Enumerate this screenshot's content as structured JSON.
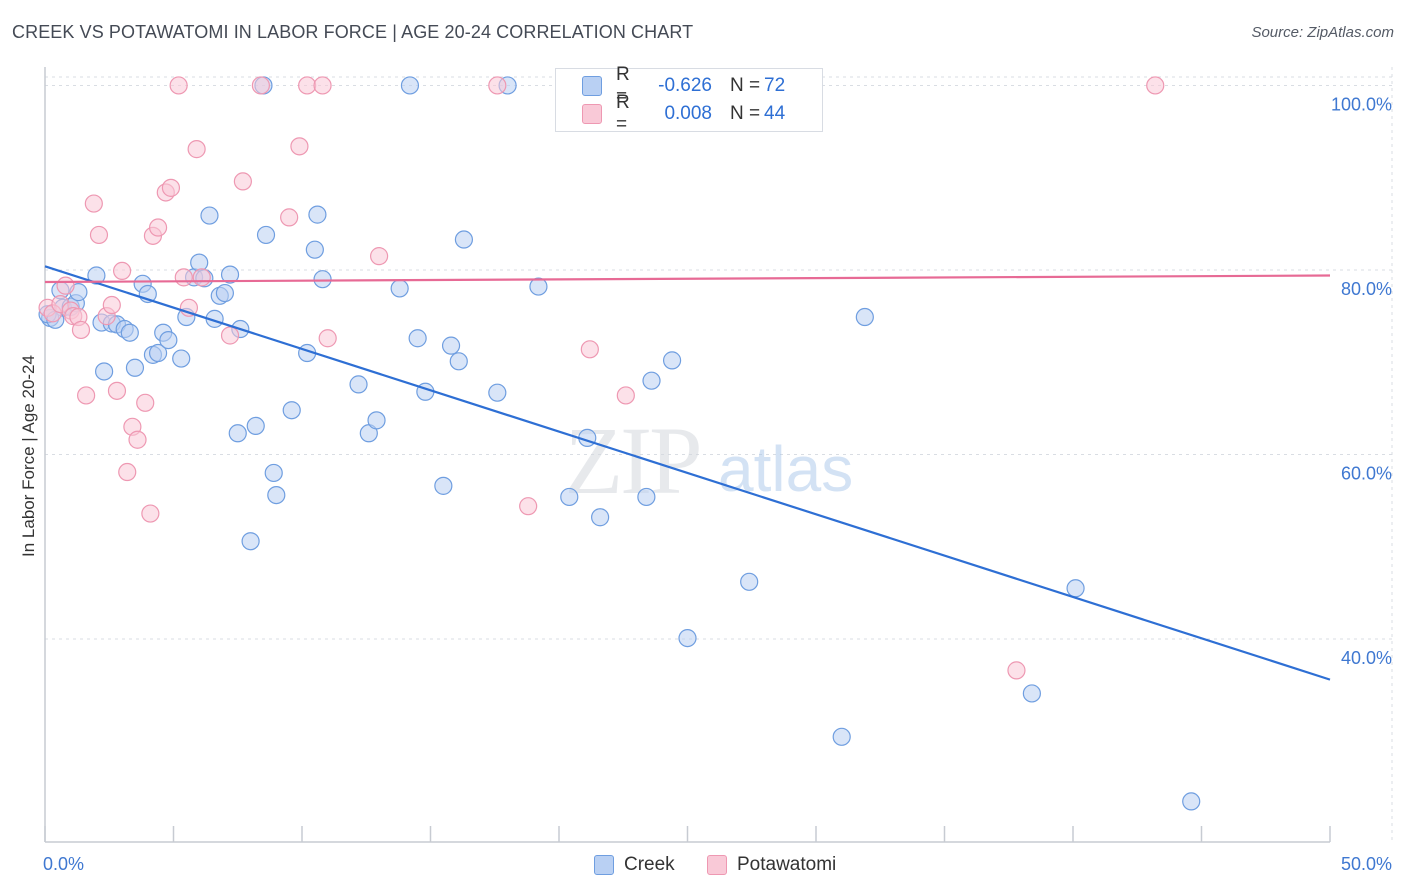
{
  "title": "CREEK VS POTAWATOMI IN LABOR FORCE | AGE 20-24 CORRELATION CHART",
  "source": "Source: ZipAtlas.com",
  "watermark": {
    "zip": "ZIP",
    "atlas": "atlas"
  },
  "legend": {
    "r_label": "R =",
    "n_label": "N =",
    "creek": {
      "r": "-0.626",
      "n": "72"
    },
    "potawatomi": {
      "r": "0.008",
      "n": "44"
    }
  },
  "colors": {
    "creek_fill": "#b9d0f3",
    "creek_stroke": "#6f9ee0",
    "creek_line": "#2e6fd4",
    "pot_fill": "#f9c9d7",
    "pot_stroke": "#ee98b2",
    "pot_line": "#e76a95",
    "axis_text": "#3f78d1",
    "grid": "#d9dde3"
  },
  "chart_data": {
    "type": "scatter",
    "title": "CREEK VS POTAWATOMI IN LABOR FORCE | AGE 20-24 CORRELATION CHART",
    "xlabel": "",
    "ylabel": "In Labor Force | Age 20-24",
    "xlim": [
      0,
      50
    ],
    "ylim": [
      18,
      102
    ],
    "x_tick_labels": [
      "0.0%",
      "50.0%"
    ],
    "y_ticks": [
      40,
      60,
      80,
      100
    ],
    "y_tick_labels": [
      "40.0%",
      "60.0%",
      "80.0%",
      "100.0%"
    ],
    "series": [
      {
        "name": "Creek",
        "r": -0.626,
        "n": 72,
        "trend": {
          "x": [
            0,
            50
          ],
          "y": [
            80.4,
            35.6
          ]
        },
        "points": [
          [
            0.2,
            74.8
          ],
          [
            0.6,
            77.8
          ],
          [
            0.7,
            75.9
          ],
          [
            1.0,
            76.0
          ],
          [
            1.2,
            76.4
          ],
          [
            1.3,
            77.6
          ],
          [
            2.0,
            79.4
          ],
          [
            2.2,
            74.3
          ],
          [
            2.3,
            69.0
          ],
          [
            2.6,
            74.2
          ],
          [
            2.8,
            74.1
          ],
          [
            3.1,
            73.6
          ],
          [
            3.3,
            73.2
          ],
          [
            3.5,
            69.4
          ],
          [
            3.8,
            78.5
          ],
          [
            4.0,
            77.4
          ],
          [
            4.2,
            70.8
          ],
          [
            4.4,
            71.0
          ],
          [
            4.6,
            73.2
          ],
          [
            4.8,
            72.4
          ],
          [
            5.3,
            70.4
          ],
          [
            5.5,
            74.9
          ],
          [
            5.8,
            79.2
          ],
          [
            6.0,
            80.8
          ],
          [
            6.2,
            79.1
          ],
          [
            6.4,
            85.9
          ],
          [
            6.6,
            74.7
          ],
          [
            6.8,
            77.2
          ],
          [
            7.0,
            77.5
          ],
          [
            7.2,
            79.5
          ],
          [
            7.5,
            62.3
          ],
          [
            7.6,
            73.6
          ],
          [
            8.0,
            50.6
          ],
          [
            8.2,
            63.1
          ],
          [
            8.5,
            100.0
          ],
          [
            8.6,
            83.8
          ],
          [
            8.9,
            58.0
          ],
          [
            9.0,
            55.6
          ],
          [
            9.6,
            64.8
          ],
          [
            10.2,
            71.0
          ],
          [
            10.5,
            82.2
          ],
          [
            10.6,
            86.0
          ],
          [
            10.8,
            79.0
          ],
          [
            12.2,
            67.6
          ],
          [
            12.6,
            62.3
          ],
          [
            12.9,
            63.7
          ],
          [
            13.8,
            78.0
          ],
          [
            14.2,
            100.0
          ],
          [
            14.5,
            72.6
          ],
          [
            14.8,
            66.8
          ],
          [
            15.5,
            56.6
          ],
          [
            15.8,
            71.8
          ],
          [
            16.1,
            70.1
          ],
          [
            16.3,
            83.3
          ],
          [
            17.6,
            66.7
          ],
          [
            18.0,
            100.0
          ],
          [
            19.2,
            78.2
          ],
          [
            20.4,
            55.4
          ],
          [
            21.1,
            61.8
          ],
          [
            21.6,
            53.2
          ],
          [
            23.4,
            55.4
          ],
          [
            23.6,
            68.0
          ],
          [
            24.4,
            70.2
          ],
          [
            25.0,
            40.1
          ],
          [
            27.4,
            46.2
          ],
          [
            31.0,
            29.4
          ],
          [
            31.9,
            74.9
          ],
          [
            38.4,
            34.1
          ],
          [
            40.1,
            45.5
          ],
          [
            44.6,
            22.4
          ],
          [
            0.1,
            75.2
          ],
          [
            0.4,
            74.6
          ]
        ]
      },
      {
        "name": "Potawatomi",
        "r": 0.008,
        "n": 44,
        "trend": {
          "x": [
            0,
            50
          ],
          "y": [
            78.7,
            79.4
          ]
        },
        "points": [
          [
            0.1,
            75.9
          ],
          [
            0.3,
            75.3
          ],
          [
            0.6,
            76.3
          ],
          [
            0.8,
            78.3
          ],
          [
            1.0,
            75.6
          ],
          [
            1.1,
            75.0
          ],
          [
            1.3,
            74.9
          ],
          [
            1.4,
            73.5
          ],
          [
            1.6,
            66.4
          ],
          [
            1.9,
            87.2
          ],
          [
            2.1,
            83.8
          ],
          [
            2.4,
            75.0
          ],
          [
            2.6,
            76.2
          ],
          [
            2.8,
            66.9
          ],
          [
            3.0,
            79.9
          ],
          [
            3.2,
            58.1
          ],
          [
            3.4,
            63.0
          ],
          [
            3.6,
            61.6
          ],
          [
            3.9,
            65.6
          ],
          [
            4.1,
            53.6
          ],
          [
            4.2,
            83.7
          ],
          [
            4.4,
            84.6
          ],
          [
            4.7,
            88.4
          ],
          [
            4.9,
            88.9
          ],
          [
            5.2,
            100.0
          ],
          [
            5.4,
            79.2
          ],
          [
            5.6,
            75.9
          ],
          [
            5.9,
            93.1
          ],
          [
            6.1,
            79.2
          ],
          [
            7.2,
            72.9
          ],
          [
            7.7,
            89.6
          ],
          [
            8.4,
            100.0
          ],
          [
            9.5,
            85.7
          ],
          [
            9.9,
            93.4
          ],
          [
            10.2,
            100.0
          ],
          [
            10.8,
            100.0
          ],
          [
            11.0,
            72.6
          ],
          [
            13.0,
            81.5
          ],
          [
            17.6,
            100.0
          ],
          [
            18.8,
            54.4
          ],
          [
            21.2,
            71.4
          ],
          [
            22.6,
            66.4
          ],
          [
            37.8,
            36.6
          ],
          [
            43.2,
            100.0
          ]
        ]
      }
    ]
  },
  "bottom_legend": {
    "creek": "Creek",
    "potawatomi": "Potawatomi"
  }
}
